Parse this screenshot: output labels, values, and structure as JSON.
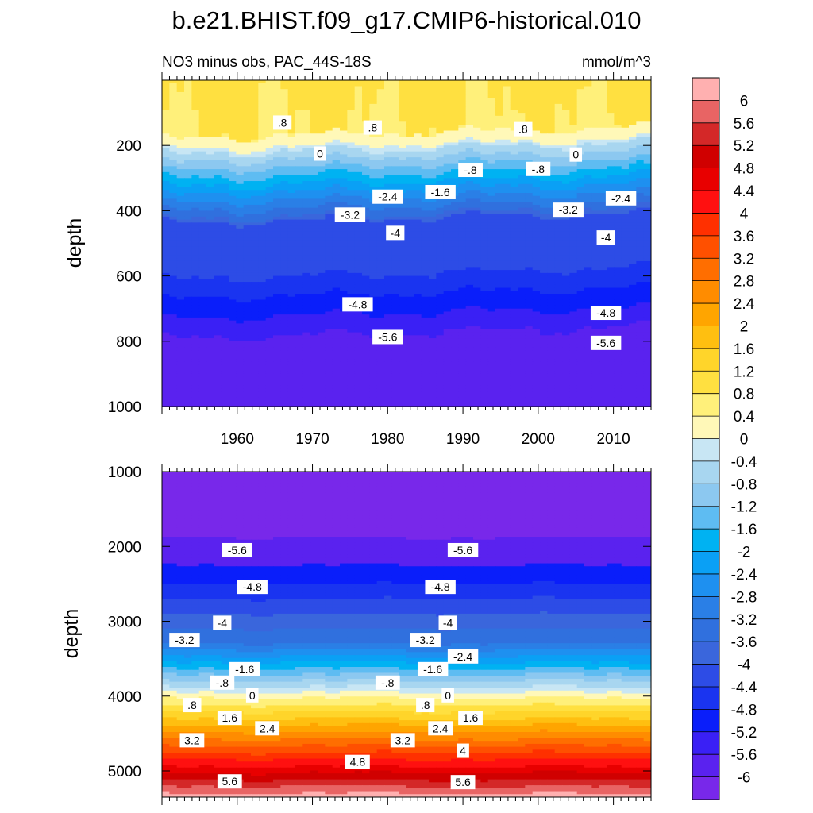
{
  "figure": {
    "title": "b.e21.BHIST.f09_g17.CMIP6-historical.010"
  },
  "chart_data": [
    {
      "type": "contour",
      "subtitle": "NO3 minus obs, PAC_44S-18S",
      "units": "mmol/m^3",
      "xlabel": "",
      "ylabel": "depth",
      "xlim": [
        1950,
        2015
      ],
      "ylim": [
        1000,
        0
      ],
      "yticks": [
        200,
        400,
        600,
        800,
        1000
      ],
      "xticks": [
        1960,
        1970,
        1980,
        1990,
        2000,
        2010
      ],
      "grid": false,
      "contour_labels": [
        {
          "text": ".8",
          "x": 1978,
          "y": 145
        },
        {
          "text": ".8",
          "x": 1966,
          "y": 130
        },
        {
          "text": ".8",
          "x": 1998,
          "y": 150
        },
        {
          "text": "0",
          "x": 1971,
          "y": 225
        },
        {
          "text": "0",
          "x": 2005,
          "y": 228
        },
        {
          "text": "-.8",
          "x": 1991,
          "y": 275
        },
        {
          "text": "-.8",
          "x": 2000,
          "y": 272
        },
        {
          "text": "-1.6",
          "x": 1987,
          "y": 343
        },
        {
          "text": "-2.4",
          "x": 1980,
          "y": 357
        },
        {
          "text": "-2.4",
          "x": 2011,
          "y": 362
        },
        {
          "text": "-3.2",
          "x": 1975,
          "y": 412
        },
        {
          "text": "-3.2",
          "x": 2004,
          "y": 397
        },
        {
          "text": "-4",
          "x": 1981,
          "y": 468
        },
        {
          "text": "-4",
          "x": 2009,
          "y": 482
        },
        {
          "text": "-4.8",
          "x": 1976,
          "y": 687
        },
        {
          "text": "-4.8",
          "x": 2009,
          "y": 713
        },
        {
          "text": "-5.6",
          "x": 1980,
          "y": 787
        },
        {
          "text": "-5.6",
          "x": 2009,
          "y": 805
        }
      ]
    },
    {
      "type": "contour",
      "xlabel": "",
      "ylabel": "depth",
      "xlim": [
        1950,
        2015
      ],
      "ylim": [
        5350,
        1000
      ],
      "yticks": [
        1000,
        2000,
        3000,
        4000,
        5000
      ],
      "grid": false,
      "contour_labels": [
        {
          "text": "-5.6",
          "x": 1960,
          "y": 2050
        },
        {
          "text": "-5.6",
          "x": 1990,
          "y": 2050
        },
        {
          "text": "-4.8",
          "x": 1962,
          "y": 2540
        },
        {
          "text": "-4.8",
          "x": 1987,
          "y": 2540
        },
        {
          "text": "-4",
          "x": 1958,
          "y": 3020
        },
        {
          "text": "-4",
          "x": 1988,
          "y": 3020
        },
        {
          "text": "-3.2",
          "x": 1953,
          "y": 3250
        },
        {
          "text": "-3.2",
          "x": 1985,
          "y": 3250
        },
        {
          "text": "-2.4",
          "x": 1990,
          "y": 3470
        },
        {
          "text": "-1.6",
          "x": 1961,
          "y": 3640
        },
        {
          "text": "-1.6",
          "x": 1986,
          "y": 3640
        },
        {
          "text": "-.8",
          "x": 1958,
          "y": 3820
        },
        {
          "text": "-.8",
          "x": 1980,
          "y": 3820
        },
        {
          "text": "0",
          "x": 1962,
          "y": 3990
        },
        {
          "text": "0",
          "x": 1988,
          "y": 3990
        },
        {
          "text": ".8",
          "x": 1954,
          "y": 4120
        },
        {
          "text": ".8",
          "x": 1985,
          "y": 4120
        },
        {
          "text": "1.6",
          "x": 1959,
          "y": 4290
        },
        {
          "text": "1.6",
          "x": 1991,
          "y": 4290
        },
        {
          "text": "2.4",
          "x": 1964,
          "y": 4430
        },
        {
          "text": "2.4",
          "x": 1987,
          "y": 4430
        },
        {
          "text": "3.2",
          "x": 1954,
          "y": 4590
        },
        {
          "text": "3.2",
          "x": 1982,
          "y": 4590
        },
        {
          "text": "4",
          "x": 1990,
          "y": 4730
        },
        {
          "text": "4.8",
          "x": 1976,
          "y": 4880
        },
        {
          "text": "5.6",
          "x": 1959,
          "y": 5140
        },
        {
          "text": "5.6",
          "x": 1990,
          "y": 5150
        }
      ]
    }
  ],
  "colorbar": {
    "levels": [
      "6",
      "5.6",
      "5.2",
      "4.8",
      "4.4",
      "4",
      "3.6",
      "3.2",
      "2.8",
      "2.4",
      "2",
      "1.6",
      "1.2",
      "0.8",
      "0.4",
      "0",
      "-0.4",
      "-0.8",
      "-1.2",
      "-1.6",
      "-2",
      "-2.4",
      "-2.8",
      "-3.2",
      "-3.6",
      "-4",
      "-4.4",
      "-4.8",
      "-5.2",
      "-5.6",
      "-6"
    ],
    "colors": [
      "#ffb0b0",
      "#e86464",
      "#d42828",
      "#d00000",
      "#e80000",
      "#ff1010",
      "#ff3000",
      "#ff5000",
      "#ff6e00",
      "#ff8c00",
      "#ffa500",
      "#ffbf10",
      "#ffd52a",
      "#ffe040",
      "#fff07a",
      "#fff8b8",
      "#c8e6f4",
      "#a8d6f0",
      "#8cc8f0",
      "#5ebcf2",
      "#00b2f2",
      "#0aa0f5",
      "#1e90f0",
      "#2a7fe6",
      "#3070de",
      "#3a66dc",
      "#2d4ce6",
      "#1a34f0",
      "#0a1efa",
      "#3a20f5",
      "#5a22ef",
      "#7828ea"
    ]
  }
}
